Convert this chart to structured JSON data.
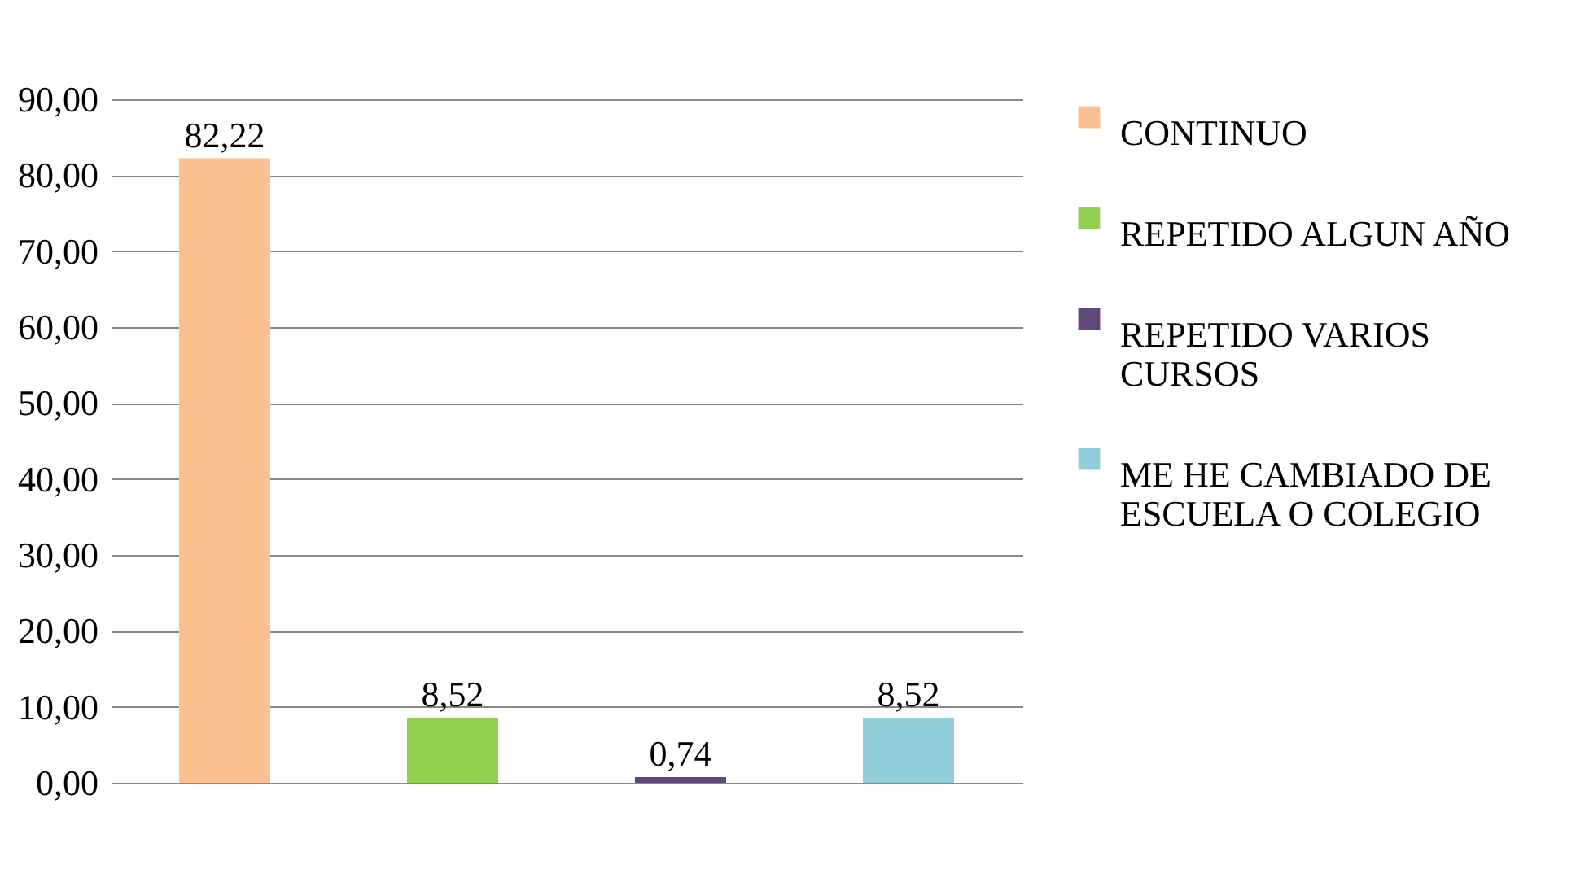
{
  "chart_data": {
    "type": "bar",
    "categories": [
      null,
      null,
      null,
      null
    ],
    "series": [
      {
        "name": "CONTINUO",
        "color": "#fac08f",
        "values": [
          82.22,
          null,
          null,
          null
        ],
        "value_labels": [
          "82,22",
          null,
          null,
          null
        ]
      },
      {
        "name": "REPETIDO ALGUN AÑO",
        "color": "#92d050",
        "values": [
          null,
          8.52,
          null,
          null
        ],
        "value_labels": [
          null,
          "8,52",
          null,
          null
        ]
      },
      {
        "name": "REPETIDO VARIOS CURSOS",
        "color": "#5f497a",
        "values": [
          null,
          null,
          0.74,
          null
        ],
        "value_labels": [
          null,
          null,
          "0,74",
          null
        ]
      },
      {
        "name": "ME HE CAMBIADO DE ESCUELA O COLEGIO",
        "color": "#92cddc",
        "values": [
          null,
          null,
          null,
          8.52
        ],
        "value_labels": [
          null,
          null,
          null,
          "8,52"
        ]
      }
    ],
    "ylim": [
      0,
      90
    ],
    "yticks": [
      {
        "value": 0,
        "label": "0,00"
      },
      {
        "value": 10,
        "label": "10,00"
      },
      {
        "value": 20,
        "label": "20,00"
      },
      {
        "value": 30,
        "label": "30,00"
      },
      {
        "value": 40,
        "label": "40,00"
      },
      {
        "value": 50,
        "label": "50,00"
      },
      {
        "value": 60,
        "label": "60,00"
      },
      {
        "value": 70,
        "label": "70,00"
      },
      {
        "value": 80,
        "label": "80,00"
      },
      {
        "value": 90,
        "label": "90,00"
      }
    ],
    "grid": "y",
    "legend": "right",
    "tick_labels": "y"
  }
}
